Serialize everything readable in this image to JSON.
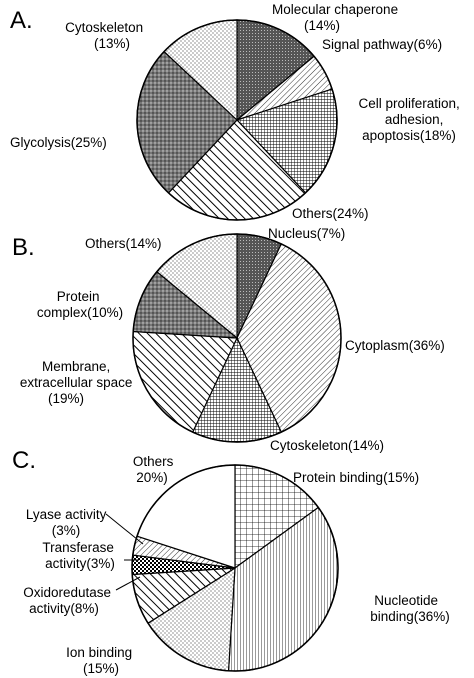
{
  "chart_data": [
    {
      "type": "pie",
      "panel": "A.",
      "title": "",
      "slices": [
        {
          "label": "Molecular chaperone (14%)",
          "value": 14,
          "pattern": "dark-dots"
        },
        {
          "label": "Signal pathway(6%)",
          "value": 6,
          "pattern": "diag-light"
        },
        {
          "label": "Cell proliferation, adhesion, apoptosis(18%)",
          "value": 18,
          "pattern": "grid-fine"
        },
        {
          "label": "Others(24%)",
          "value": 24,
          "pattern": "diag-bold"
        },
        {
          "label": "Glycolysis(25%)",
          "value": 25,
          "pattern": "dots-medium"
        },
        {
          "label": "Cytoskeleton (13%)",
          "value": 13,
          "pattern": "dots-sparse"
        }
      ]
    },
    {
      "type": "pie",
      "panel": "B.",
      "title": "",
      "slices": [
        {
          "label": "Nucleus(7%)",
          "value": 7,
          "pattern": "dark-dots"
        },
        {
          "label": "Cytoplasm(36%)",
          "value": 36,
          "pattern": "diag-light"
        },
        {
          "label": "Cytoskeleton(14%)",
          "value": 14,
          "pattern": "grid-fine"
        },
        {
          "label": "Membrane, extracellular space (19%)",
          "value": 19,
          "pattern": "diag-bold"
        },
        {
          "label": "Protein complex(10%)",
          "value": 10,
          "pattern": "dots-medium"
        },
        {
          "label": "Others(14%)",
          "value": 14,
          "pattern": "dots-sparse"
        }
      ]
    },
    {
      "type": "pie",
      "panel": "C.",
      "title": "",
      "slices": [
        {
          "label": "Protein binding(15%)",
          "value": 15,
          "pattern": "grid-square"
        },
        {
          "label": "Nucleotide binding(36%)",
          "value": 36,
          "pattern": "vertical-lines"
        },
        {
          "label": "Ion binding (15%)",
          "value": 15,
          "pattern": "dots-sparse"
        },
        {
          "label": "Oxidoredutase activity(8%)",
          "value": 8,
          "pattern": "diag-bold"
        },
        {
          "label": "Transferase activity(3%)",
          "value": 3,
          "pattern": "checker"
        },
        {
          "label": "Lyase activity (3%)",
          "value": 3,
          "pattern": "diag-light"
        },
        {
          "label": "Others 20%)",
          "value": 20,
          "pattern": "white"
        }
      ]
    }
  ]
}
